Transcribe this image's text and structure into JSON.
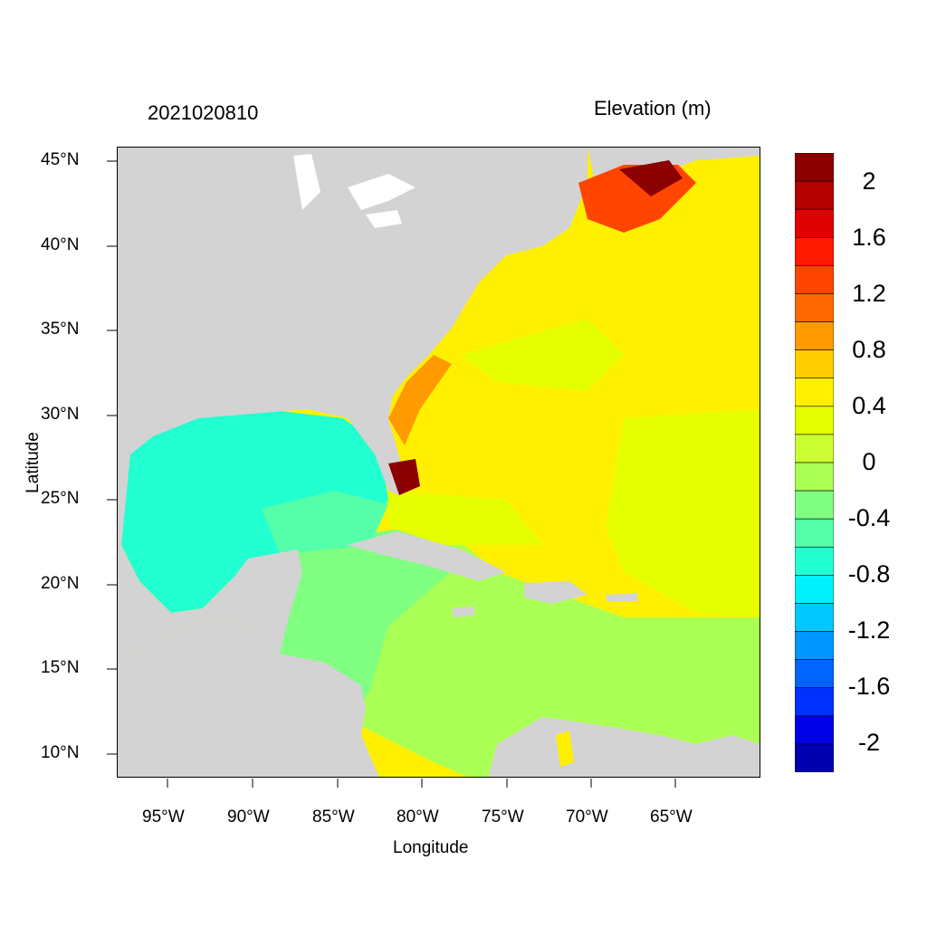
{
  "header": {
    "datetime": "2021020810",
    "variable_title": "Elevation (m)"
  },
  "axes": {
    "xlabel": "Longitude",
    "ylabel": "Latitude",
    "x_ticks": [
      "95°W",
      "90°W",
      "85°W",
      "80°W",
      "75°W",
      "70°W",
      "65°W"
    ],
    "y_ticks": [
      "45°N",
      "40°N",
      "35°N",
      "30°N",
      "25°N",
      "20°N",
      "15°N",
      "10°N"
    ]
  },
  "colorbar": {
    "labels": [
      "2",
      "1.6",
      "1.2",
      "0.8",
      "0.4",
      "0",
      "-0.4",
      "-0.8",
      "-1.2",
      "-1.6",
      "-2"
    ],
    "colors": [
      "#8b0000",
      "#b50000",
      "#e00000",
      "#ff1a00",
      "#ff4500",
      "#ff6a00",
      "#ff9a00",
      "#ffcc00",
      "#fff000",
      "#e6ff00",
      "#ccff33",
      "#aaff55",
      "#80ff80",
      "#55ffaa",
      "#22ffd0",
      "#00f0ff",
      "#00c8ff",
      "#0096ff",
      "#0064ff",
      "#0032ff",
      "#0000e6",
      "#0000b0"
    ]
  },
  "map": {
    "land_color": "#d3d3d3",
    "water_colors": {
      "gulf": "#22ffd0",
      "caribbean_west": "#80ff80",
      "caribbean_east": "#aaff55",
      "atlantic_mid": "#e6ff00",
      "atlantic_high": "#fff000",
      "northeast_surge": "#ff4500",
      "surge_peak": "#8b0000"
    }
  }
}
